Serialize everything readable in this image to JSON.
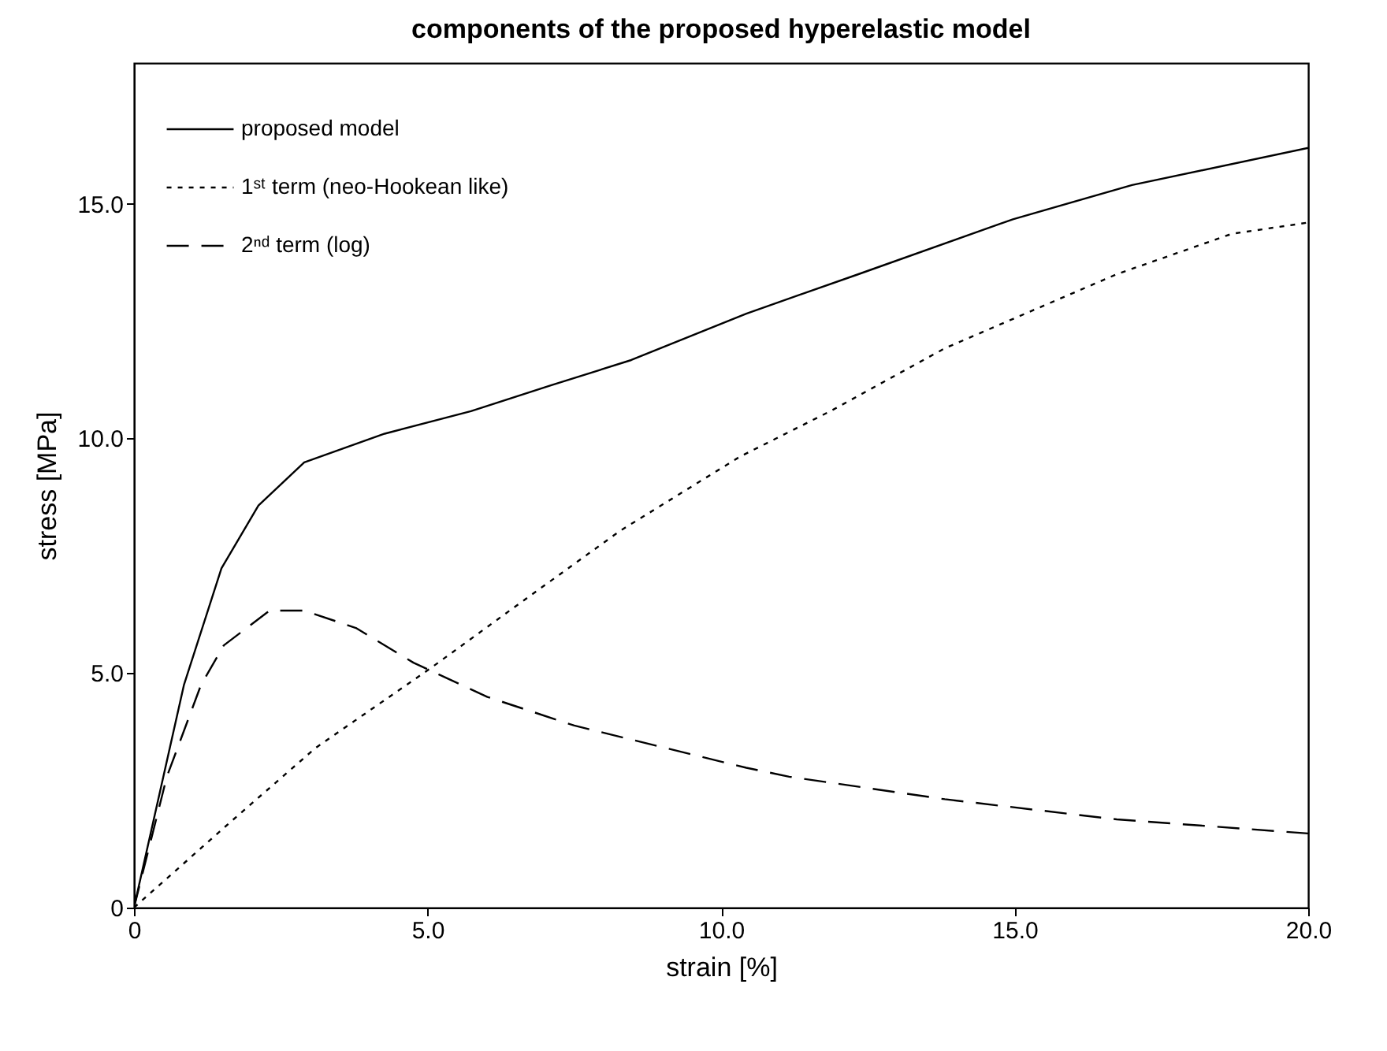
{
  "chart_data": {
    "type": "line",
    "title": "components of the proposed hyperelastic model",
    "xlabel": "strain [%]",
    "ylabel": "stress [MPa]",
    "xlim": [
      0,
      20
    ],
    "ylim": [
      0,
      18
    ],
    "xticks": [
      0,
      {
        "value": 5,
        "label": "5.0"
      },
      {
        "value": 10,
        "label": "10.0"
      },
      {
        "value": 15,
        "label": "15.0"
      },
      {
        "value": 20,
        "label": "20.0"
      }
    ],
    "yticks": [
      0,
      {
        "value": 5,
        "label": "5.0"
      },
      {
        "value": 10,
        "label": "10.0"
      },
      {
        "value": 15,
        "label": "15.0"
      }
    ],
    "grid": false,
    "legend": "top left",
    "marker": "none",
    "series": [
      {
        "name": "proposed model",
        "color": "#000000",
        "line_style": "solid",
        "x": [
          0,
          0.85,
          1.49,
          2.12,
          2.9,
          4.27,
          5.74,
          7.1,
          8.47,
          10.43,
          12.34,
          14.97,
          17.0,
          20
        ],
        "values": [
          0,
          4.74,
          7.23,
          8.57,
          9.49,
          10.1,
          10.58,
          11.13,
          11.67,
          12.66,
          13.5,
          14.67,
          15.4,
          16.19
        ]
      },
      {
        "name": "1ˢᵗ term (neo-Hookean like)",
        "color": "#000000",
        "line_style": "dotted",
        "x": [
          0,
          1.63,
          3.09,
          5.05,
          6.52,
          8.28,
          10.32,
          11.86,
          13.81,
          16.74,
          18.7,
          20
        ],
        "values": [
          0,
          1.81,
          3.4,
          5.1,
          6.44,
          8.03,
          9.61,
          10.58,
          11.92,
          13.5,
          14.36,
          14.6
        ]
      },
      {
        "name": "2ⁿᵈ term (log)",
        "color": "#000000",
        "line_style": "dashed",
        "x": [
          0,
          0.56,
          1.14,
          1.53,
          2.31,
          2.9,
          3.78,
          4.76,
          6.02,
          7.5,
          9.45,
          10.43,
          11.16,
          13.81,
          16.74,
          20
        ],
        "values": [
          0,
          2.79,
          4.74,
          5.59,
          6.33,
          6.33,
          5.96,
          5.22,
          4.49,
          3.88,
          3.28,
          2.98,
          2.79,
          2.31,
          1.88,
          1.58
        ]
      }
    ]
  }
}
